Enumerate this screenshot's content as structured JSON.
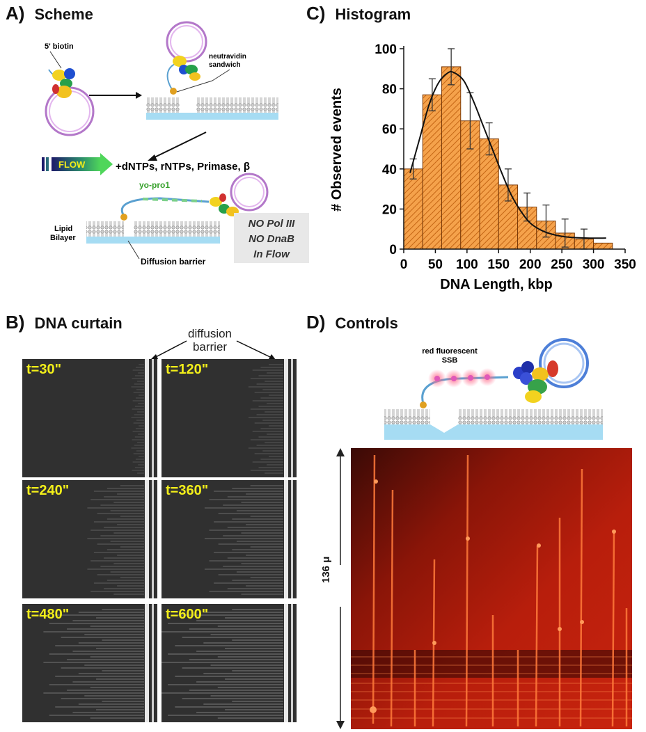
{
  "panels": {
    "a": {
      "letter": "A)",
      "title": "Scheme",
      "labels": {
        "biotin": "5' biotin",
        "neutravidin": "neutravidin\nsandwich",
        "flow": "FLOW",
        "reagents": "+dNTPs, rNTPs, Primase, β",
        "dye": "yo-pro1",
        "lipid": "Lipid\nBilayer",
        "barrier": "Diffusion barrier",
        "note_lines": [
          "NO Pol III",
          "NO DnaB",
          "In Flow"
        ]
      }
    },
    "b": {
      "letter": "B)",
      "title": "DNA curtain",
      "barrier_label": "diffusion\nbarrier",
      "frames": [
        "t=30\"",
        "t=120\"",
        "t=240\"",
        "t=360\"",
        "t=480\"",
        "t=600\""
      ]
    },
    "c": {
      "letter": "C)",
      "title": "Histogram"
    },
    "d": {
      "letter": "D)",
      "title": "Controls",
      "ssb_label": "red fluorescent\nSSB",
      "scale_label": "136 μ"
    }
  },
  "chart_data": {
    "type": "bar",
    "xlabel": "DNA Length, kbp",
    "ylabel": "# Observed events",
    "xlim": [
      0,
      350
    ],
    "ylim": [
      0,
      100
    ],
    "xticks": [
      0,
      50,
      100,
      150,
      200,
      250,
      300,
      350
    ],
    "yticks": [
      0,
      20,
      40,
      60,
      80,
      100
    ],
    "bin_centers": [
      15,
      45,
      75,
      105,
      135,
      165,
      195,
      225,
      255,
      285,
      315
    ],
    "bin_width": 30,
    "values": [
      40,
      77,
      91,
      64,
      55,
      32,
      21,
      14,
      8,
      5,
      3
    ],
    "errors": [
      5,
      8,
      9,
      14,
      8,
      8,
      7,
      8,
      7,
      5,
      0
    ],
    "fit_points": [
      [
        10,
        38
      ],
      [
        25,
        55
      ],
      [
        40,
        72
      ],
      [
        55,
        83
      ],
      [
        70,
        88
      ],
      [
        80,
        88
      ],
      [
        95,
        84
      ],
      [
        110,
        74
      ],
      [
        125,
        62
      ],
      [
        140,
        50
      ],
      [
        155,
        38
      ],
      [
        170,
        27
      ],
      [
        185,
        19
      ],
      [
        200,
        13
      ],
      [
        220,
        9
      ],
      [
        240,
        7
      ],
      [
        260,
        6
      ],
      [
        290,
        5.5
      ],
      [
        320,
        5.5
      ]
    ],
    "bar_color": "#f5a24b",
    "hatch_color": "#c46514"
  }
}
